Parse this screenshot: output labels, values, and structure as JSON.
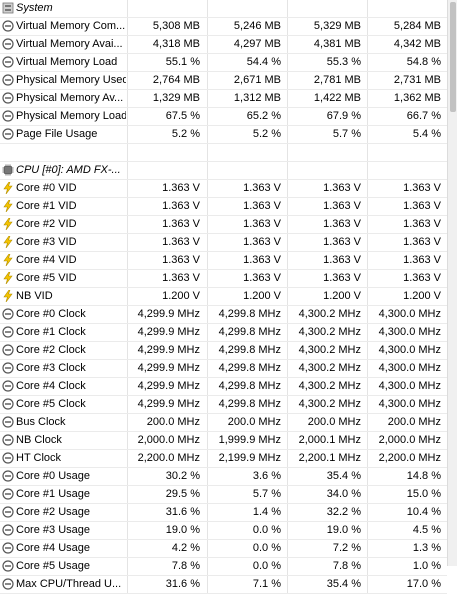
{
  "rows": [
    {
      "kind": "section",
      "label": "System",
      "icon": "system-icon",
      "values": [
        "",
        "",
        "",
        ""
      ]
    },
    {
      "kind": "row",
      "label": "Virtual Memory Com...",
      "icon": "circle-minus-icon",
      "values": [
        "5,308 MB",
        "5,246 MB",
        "5,329 MB",
        "5,284 MB"
      ]
    },
    {
      "kind": "row",
      "label": "Virtual Memory Avai...",
      "icon": "circle-minus-icon",
      "values": [
        "4,318 MB",
        "4,297 MB",
        "4,381 MB",
        "4,342 MB"
      ]
    },
    {
      "kind": "row",
      "label": "Virtual Memory Load",
      "icon": "circle-minus-icon",
      "values": [
        "55.1 %",
        "54.4 %",
        "55.3 %",
        "54.8 %"
      ]
    },
    {
      "kind": "row",
      "label": "Physical Memory Used",
      "icon": "circle-minus-icon",
      "values": [
        "2,764 MB",
        "2,671 MB",
        "2,781 MB",
        "2,731 MB"
      ]
    },
    {
      "kind": "row",
      "label": "Physical Memory Av...",
      "icon": "circle-minus-icon",
      "values": [
        "1,329 MB",
        "1,312 MB",
        "1,422 MB",
        "1,362 MB"
      ]
    },
    {
      "kind": "row",
      "label": "Physical Memory Load",
      "icon": "circle-minus-icon",
      "values": [
        "67.5 %",
        "65.2 %",
        "67.9 %",
        "66.7 %"
      ]
    },
    {
      "kind": "row",
      "label": "Page File Usage",
      "icon": "circle-minus-icon",
      "values": [
        "5.2 %",
        "5.2 %",
        "5.7 %",
        "5.4 %"
      ]
    },
    {
      "kind": "blank",
      "label": "",
      "icon": "",
      "values": [
        "",
        "",
        "",
        ""
      ]
    },
    {
      "kind": "section",
      "label": "CPU [#0]: AMD FX-...",
      "icon": "cpu-chip-icon",
      "values": [
        "",
        "",
        "",
        ""
      ]
    },
    {
      "kind": "row",
      "label": "Core #0 VID",
      "icon": "lightning-bolt-icon",
      "values": [
        "1.363 V",
        "1.363 V",
        "1.363 V",
        "1.363 V"
      ]
    },
    {
      "kind": "row",
      "label": "Core #1 VID",
      "icon": "lightning-bolt-icon",
      "values": [
        "1.363 V",
        "1.363 V",
        "1.363 V",
        "1.363 V"
      ]
    },
    {
      "kind": "row",
      "label": "Core #2 VID",
      "icon": "lightning-bolt-icon",
      "values": [
        "1.363 V",
        "1.363 V",
        "1.363 V",
        "1.363 V"
      ]
    },
    {
      "kind": "row",
      "label": "Core #3 VID",
      "icon": "lightning-bolt-icon",
      "values": [
        "1.363 V",
        "1.363 V",
        "1.363 V",
        "1.363 V"
      ]
    },
    {
      "kind": "row",
      "label": "Core #4 VID",
      "icon": "lightning-bolt-icon",
      "values": [
        "1.363 V",
        "1.363 V",
        "1.363 V",
        "1.363 V"
      ]
    },
    {
      "kind": "row",
      "label": "Core #5 VID",
      "icon": "lightning-bolt-icon",
      "values": [
        "1.363 V",
        "1.363 V",
        "1.363 V",
        "1.363 V"
      ]
    },
    {
      "kind": "row",
      "label": "NB VID",
      "icon": "lightning-bolt-icon",
      "values": [
        "1.200 V",
        "1.200 V",
        "1.200 V",
        "1.200 V"
      ]
    },
    {
      "kind": "row",
      "label": "Core #0 Clock",
      "icon": "circle-minus-icon",
      "values": [
        "4,299.9 MHz",
        "4,299.8 MHz",
        "4,300.2 MHz",
        "4,300.0 MHz"
      ]
    },
    {
      "kind": "row",
      "label": "Core #1 Clock",
      "icon": "circle-minus-icon",
      "values": [
        "4,299.9 MHz",
        "4,299.8 MHz",
        "4,300.2 MHz",
        "4,300.0 MHz"
      ]
    },
    {
      "kind": "row",
      "label": "Core #2 Clock",
      "icon": "circle-minus-icon",
      "values": [
        "4,299.9 MHz",
        "4,299.8 MHz",
        "4,300.2 MHz",
        "4,300.0 MHz"
      ]
    },
    {
      "kind": "row",
      "label": "Core #3 Clock",
      "icon": "circle-minus-icon",
      "values": [
        "4,299.9 MHz",
        "4,299.8 MHz",
        "4,300.2 MHz",
        "4,300.0 MHz"
      ]
    },
    {
      "kind": "row",
      "label": "Core #4 Clock",
      "icon": "circle-minus-icon",
      "values": [
        "4,299.9 MHz",
        "4,299.8 MHz",
        "4,300.2 MHz",
        "4,300.0 MHz"
      ]
    },
    {
      "kind": "row",
      "label": "Core #5 Clock",
      "icon": "circle-minus-icon",
      "values": [
        "4,299.9 MHz",
        "4,299.8 MHz",
        "4,300.2 MHz",
        "4,300.0 MHz"
      ]
    },
    {
      "kind": "row",
      "label": "Bus Clock",
      "icon": "circle-minus-icon",
      "values": [
        "200.0 MHz",
        "200.0 MHz",
        "200.0 MHz",
        "200.0 MHz"
      ]
    },
    {
      "kind": "row",
      "label": "NB Clock",
      "icon": "circle-minus-icon",
      "values": [
        "2,000.0 MHz",
        "1,999.9 MHz",
        "2,000.1 MHz",
        "2,000.0 MHz"
      ]
    },
    {
      "kind": "row",
      "label": "HT Clock",
      "icon": "circle-minus-icon",
      "values": [
        "2,200.0 MHz",
        "2,199.9 MHz",
        "2,200.1 MHz",
        "2,200.0 MHz"
      ]
    },
    {
      "kind": "row",
      "label": "Core #0 Usage",
      "icon": "circle-minus-icon",
      "values": [
        "30.2 %",
        "3.6 %",
        "35.4 %",
        "14.8 %"
      ]
    },
    {
      "kind": "row",
      "label": "Core #1 Usage",
      "icon": "circle-minus-icon",
      "values": [
        "29.5 %",
        "5.7 %",
        "34.0 %",
        "15.0 %"
      ]
    },
    {
      "kind": "row",
      "label": "Core #2 Usage",
      "icon": "circle-minus-icon",
      "values": [
        "31.6 %",
        "1.4 %",
        "32.2 %",
        "10.4 %"
      ]
    },
    {
      "kind": "row",
      "label": "Core #3 Usage",
      "icon": "circle-minus-icon",
      "values": [
        "19.0 %",
        "0.0 %",
        "19.0 %",
        "4.5 %"
      ]
    },
    {
      "kind": "row",
      "label": "Core #4 Usage",
      "icon": "circle-minus-icon",
      "values": [
        "4.2 %",
        "0.0 %",
        "7.2 %",
        "1.3 %"
      ]
    },
    {
      "kind": "row",
      "label": "Core #5 Usage",
      "icon": "circle-minus-icon",
      "values": [
        "7.8 %",
        "0.0 %",
        "7.8 %",
        "1.0 %"
      ]
    },
    {
      "kind": "row",
      "label": "Max CPU/Thread U...",
      "icon": "circle-minus-icon",
      "values": [
        "31.6 %",
        "7.1 %",
        "35.4 %",
        "17.0 %"
      ]
    }
  ],
  "colors": {
    "bolt": "#f5c400",
    "section_bg": "#e8e8e8",
    "circle": "#555555"
  }
}
